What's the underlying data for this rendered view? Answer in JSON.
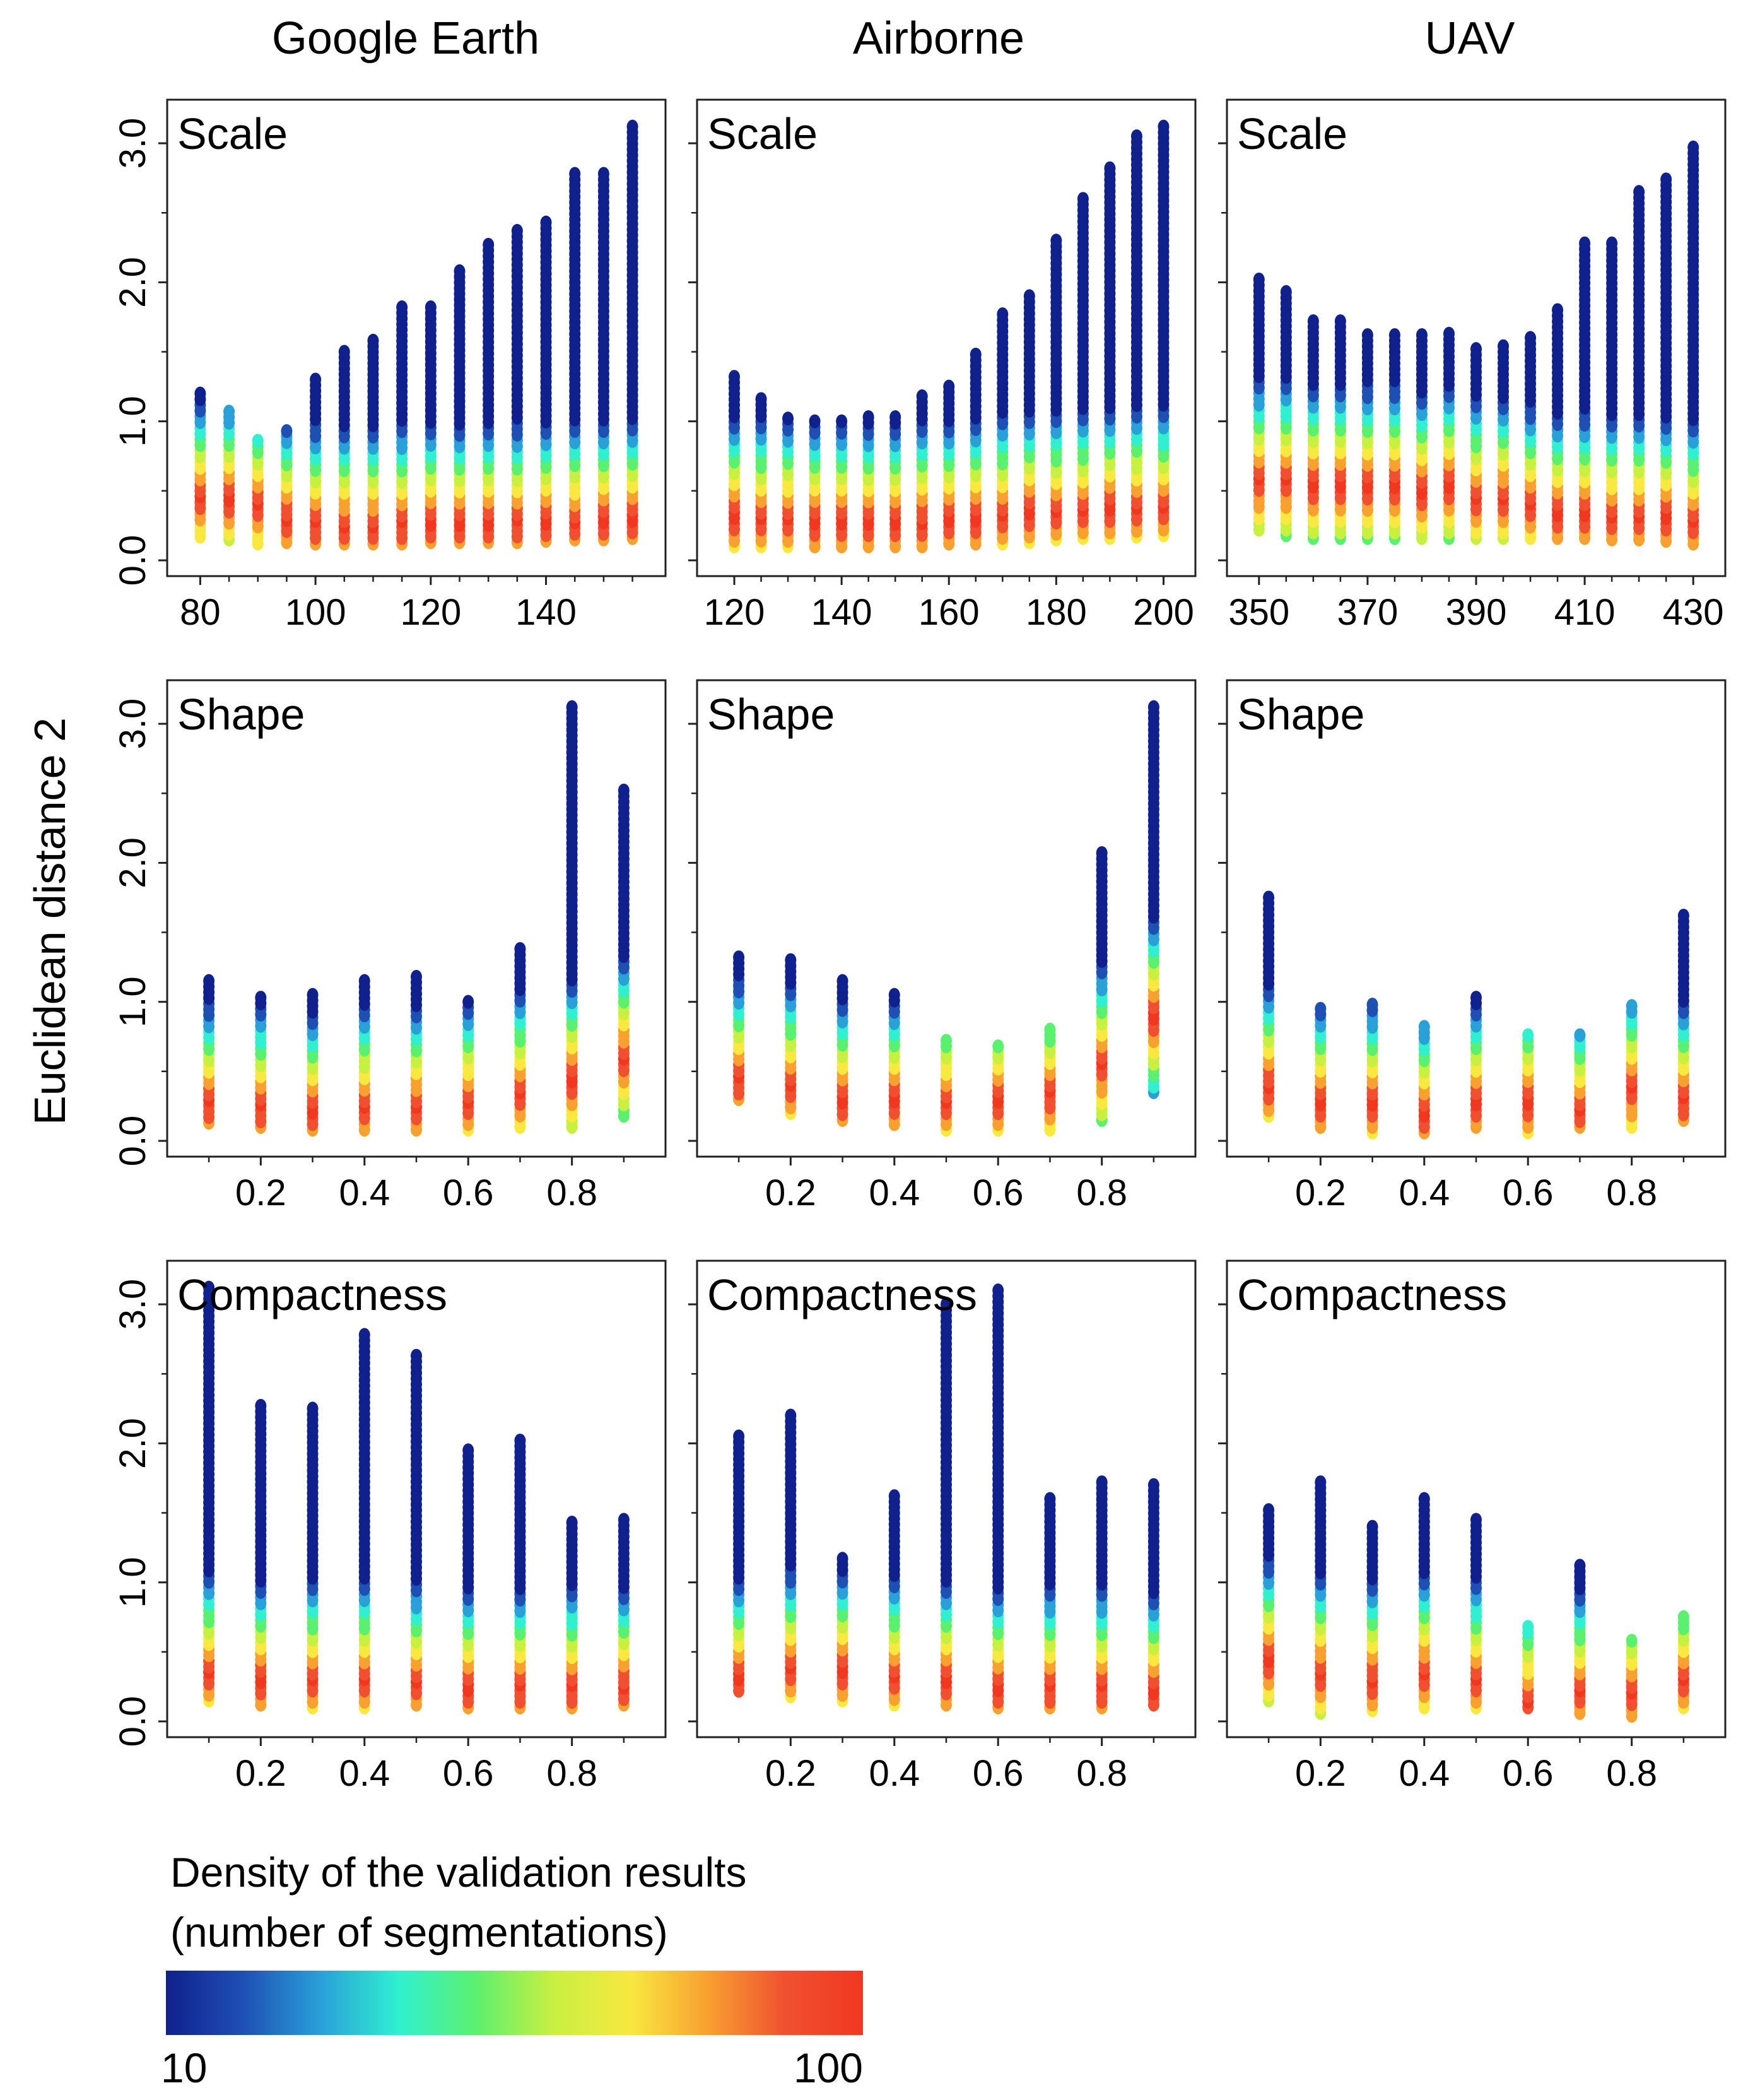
{
  "figure": {
    "column_titles": [
      "Google Earth",
      "Airborne",
      "UAV"
    ],
    "y_axis_label": "Euclidean distance 2",
    "legend": {
      "title_line1": "Density of the validation results",
      "title_line2": "(number of segmentations)",
      "min_label": "10",
      "max_label": "100",
      "colors": [
        "#10208c",
        "#1e50b4",
        "#2aa0d8",
        "#30f0d0",
        "#5cf070",
        "#c8f040",
        "#f8e840",
        "#f8a030",
        "#f05030",
        "#f03820"
      ]
    }
  },
  "chart_data": [
    {
      "type": "scatter",
      "column": "Google Earth",
      "panel_label": "Scale",
      "x": [
        80,
        85,
        90,
        95,
        100,
        105,
        110,
        115,
        120,
        125,
        130,
        135,
        140,
        145,
        150,
        155
      ],
      "y_max": [
        1.2,
        1.07,
        0.86,
        0.93,
        1.3,
        1.5,
        1.58,
        1.82,
        1.82,
        2.08,
        2.27,
        2.37,
        2.43,
        2.78,
        2.78,
        3.12
      ],
      "y_min": [
        0.17,
        0.15,
        0.12,
        0.13,
        0.12,
        0.12,
        0.12,
        0.12,
        0.13,
        0.13,
        0.13,
        0.13,
        0.14,
        0.15,
        0.15,
        0.16
      ],
      "hot_center": [
        0.45,
        0.45,
        0.4,
        0.3,
        0.27,
        0.25,
        0.25,
        0.27,
        0.27,
        0.27,
        0.27,
        0.28,
        0.28,
        0.28,
        0.3,
        0.3
      ],
      "xlim": [
        77,
        158
      ],
      "ylim": [
        0,
        3.2
      ],
      "x_ticks": [
        80,
        100,
        120,
        140
      ],
      "y_ticks": [
        0,
        1,
        2,
        3
      ],
      "y_tick_labels": [
        "0.0",
        "1.0",
        "2.0",
        "3.0"
      ]
    },
    {
      "type": "scatter",
      "column": "Airborne",
      "panel_label": "Scale",
      "x": [
        120,
        125,
        130,
        135,
        140,
        145,
        150,
        155,
        160,
        165,
        170,
        175,
        180,
        185,
        190,
        195,
        200
      ],
      "y_max": [
        1.32,
        1.16,
        1.02,
        1.0,
        1.0,
        1.03,
        1.03,
        1.18,
        1.25,
        1.48,
        1.77,
        1.9,
        2.3,
        2.6,
        2.82,
        3.05,
        3.12
      ],
      "y_min": [
        0.1,
        0.1,
        0.1,
        0.1,
        0.1,
        0.1,
        0.1,
        0.1,
        0.12,
        0.12,
        0.12,
        0.13,
        0.15,
        0.16,
        0.16,
        0.17,
        0.18
      ],
      "hot_center": [
        0.32,
        0.3,
        0.3,
        0.28,
        0.28,
        0.28,
        0.28,
        0.28,
        0.3,
        0.3,
        0.33,
        0.35,
        0.35,
        0.36,
        0.38,
        0.38,
        0.38
      ],
      "xlim": [
        116,
        203
      ],
      "ylim": [
        0,
        3.2
      ],
      "x_ticks": [
        120,
        140,
        160,
        180,
        200
      ],
      "y_ticks": [
        0,
        1,
        2,
        3
      ],
      "y_tick_labels": [
        "0.0",
        "1.0",
        "2.0",
        "3.0"
      ]
    },
    {
      "type": "scatter",
      "column": "UAV",
      "panel_label": "Scale",
      "x": [
        350,
        355,
        360,
        365,
        370,
        375,
        380,
        385,
        390,
        395,
        400,
        405,
        410,
        415,
        420,
        425,
        430
      ],
      "y_max": [
        2.02,
        1.93,
        1.72,
        1.72,
        1.62,
        1.62,
        1.62,
        1.63,
        1.52,
        1.54,
        1.6,
        1.8,
        2.28,
        2.28,
        2.65,
        2.74,
        2.97
      ],
      "y_min": [
        0.22,
        0.18,
        0.16,
        0.16,
        0.16,
        0.16,
        0.16,
        0.16,
        0.16,
        0.16,
        0.16,
        0.16,
        0.16,
        0.15,
        0.15,
        0.14,
        0.12
      ],
      "hot_center": [
        0.58,
        0.58,
        0.55,
        0.55,
        0.55,
        0.55,
        0.5,
        0.55,
        0.45,
        0.45,
        0.4,
        0.35,
        0.35,
        0.32,
        0.32,
        0.32,
        0.28
      ],
      "xlim": [
        347,
        433
      ],
      "ylim": [
        0,
        3.2
      ],
      "x_ticks": [
        350,
        370,
        390,
        410,
        430
      ],
      "y_ticks": [
        0,
        1,
        2,
        3
      ],
      "y_tick_labels": [
        "0.0",
        "1.0",
        "2.0",
        "3.0"
      ]
    },
    {
      "type": "scatter",
      "column": "Google Earth",
      "panel_label": "Shape",
      "x": [
        0.1,
        0.2,
        0.3,
        0.4,
        0.5,
        0.6,
        0.7,
        0.8,
        0.9
      ],
      "y_max": [
        1.15,
        1.03,
        1.05,
        1.15,
        1.18,
        1.0,
        1.38,
        3.12,
        2.52
      ],
      "y_min": [
        0.13,
        0.1,
        0.08,
        0.08,
        0.08,
        0.08,
        0.1,
        0.1,
        0.18
      ],
      "hot_center": [
        0.28,
        0.25,
        0.22,
        0.25,
        0.25,
        0.28,
        0.35,
        0.45,
        0.6
      ],
      "xlim": [
        0.05,
        0.95
      ],
      "ylim": [
        0,
        3.2
      ],
      "x_ticks": [
        0.2,
        0.4,
        0.6,
        0.8
      ],
      "y_ticks": [
        0,
        1,
        2,
        3
      ],
      "y_tick_labels": [
        "0.0",
        "1.0",
        "2.0",
        "3.0"
      ]
    },
    {
      "type": "scatter",
      "column": "Airborne",
      "panel_label": "Shape",
      "x": [
        0.1,
        0.2,
        0.3,
        0.4,
        0.5,
        0.6,
        0.7,
        0.8,
        0.9
      ],
      "y_max": [
        1.32,
        1.3,
        1.15,
        1.05,
        0.72,
        0.68,
        0.8,
        2.07,
        3.12
      ],
      "y_min": [
        0.3,
        0.2,
        0.15,
        0.12,
        0.08,
        0.08,
        0.08,
        0.15,
        0.35
      ],
      "hot_center": [
        0.45,
        0.4,
        0.3,
        0.3,
        0.28,
        0.3,
        0.35,
        0.55,
        0.9
      ],
      "xlim": [
        0.05,
        0.95
      ],
      "ylim": [
        0,
        3.2
      ],
      "x_ticks": [
        0.2,
        0.4,
        0.6,
        0.8
      ],
      "y_ticks": [
        0,
        1,
        2,
        3
      ],
      "y_tick_labels": [
        "0.0",
        "1.0",
        "2.0",
        "3.0"
      ]
    },
    {
      "type": "scatter",
      "column": "UAV",
      "panel_label": "Shape",
      "x": [
        0.1,
        0.2,
        0.3,
        0.4,
        0.5,
        0.6,
        0.7,
        0.8,
        0.9
      ],
      "y_max": [
        1.75,
        0.95,
        0.98,
        0.82,
        1.03,
        0.76,
        0.76,
        0.97,
        1.62
      ],
      "y_min": [
        0.18,
        0.1,
        0.06,
        0.06,
        0.1,
        0.06,
        0.1,
        0.1,
        0.15
      ],
      "hot_center": [
        0.4,
        0.28,
        0.28,
        0.2,
        0.28,
        0.28,
        0.22,
        0.38,
        0.3
      ],
      "xlim": [
        0.05,
        0.95
      ],
      "ylim": [
        0,
        3.2
      ],
      "x_ticks": [
        0.2,
        0.4,
        0.6,
        0.8
      ],
      "y_ticks": [
        0,
        1,
        2,
        3
      ],
      "y_tick_labels": [
        "0.0",
        "1.0",
        "2.0",
        "3.0"
      ]
    },
    {
      "type": "scatter",
      "column": "Google Earth",
      "panel_label": "Compactness",
      "x": [
        0.1,
        0.2,
        0.3,
        0.4,
        0.5,
        0.6,
        0.7,
        0.8,
        0.9
      ],
      "y_max": [
        3.12,
        2.27,
        2.25,
        2.78,
        2.63,
        1.95,
        2.02,
        1.43,
        1.45
      ],
      "y_min": [
        0.15,
        0.12,
        0.1,
        0.1,
        0.12,
        0.1,
        0.1,
        0.1,
        0.12
      ],
      "hot_center": [
        0.35,
        0.3,
        0.3,
        0.3,
        0.28,
        0.25,
        0.25,
        0.25,
        0.25
      ],
      "xlim": [
        0.05,
        0.95
      ],
      "ylim": [
        0,
        3.2
      ],
      "x_ticks": [
        0.2,
        0.4,
        0.6,
        0.8
      ],
      "y_ticks": [
        0,
        1,
        2,
        3
      ],
      "y_tick_labels": [
        "0.0",
        "1.0",
        "2.0",
        "3.0"
      ]
    },
    {
      "type": "scatter",
      "column": "Airborne",
      "panel_label": "Compactness",
      "x": [
        0.1,
        0.2,
        0.3,
        0.4,
        0.5,
        0.6,
        0.7,
        0.8,
        0.9
      ],
      "y_max": [
        2.05,
        2.2,
        1.17,
        1.62,
        3.0,
        3.1,
        1.6,
        1.72,
        1.7
      ],
      "y_min": [
        0.22,
        0.18,
        0.15,
        0.12,
        0.12,
        0.1,
        0.1,
        0.1,
        0.12
      ],
      "hot_center": [
        0.32,
        0.38,
        0.38,
        0.32,
        0.3,
        0.25,
        0.25,
        0.25,
        0.22
      ],
      "xlim": [
        0.05,
        0.95
      ],
      "ylim": [
        0,
        3.2
      ],
      "x_ticks": [
        0.2,
        0.4,
        0.6,
        0.8
      ],
      "y_ticks": [
        0,
        1,
        2,
        3
      ],
      "y_tick_labels": [
        "0.0",
        "1.0",
        "2.0",
        "3.0"
      ]
    },
    {
      "type": "scatter",
      "column": "UAV",
      "panel_label": "Compactness",
      "x": [
        0.1,
        0.2,
        0.3,
        0.4,
        0.5,
        0.6,
        0.7,
        0.8,
        0.9
      ],
      "y_max": [
        1.52,
        1.72,
        1.4,
        1.6,
        1.45,
        0.68,
        1.12,
        0.58,
        0.75
      ],
      "y_min": [
        0.15,
        0.06,
        0.08,
        0.1,
        0.1,
        0.1,
        0.06,
        0.04,
        0.1
      ],
      "hot_center": [
        0.45,
        0.35,
        0.3,
        0.35,
        0.3,
        0.15,
        0.22,
        0.2,
        0.3
      ],
      "xlim": [
        0.05,
        0.95
      ],
      "ylim": [
        0,
        3.2
      ],
      "x_ticks": [
        0.2,
        0.4,
        0.6,
        0.8
      ],
      "y_ticks": [
        0,
        1,
        2,
        3
      ],
      "y_tick_labels": [
        "0.0",
        "1.0",
        "2.0",
        "3.0"
      ]
    }
  ]
}
